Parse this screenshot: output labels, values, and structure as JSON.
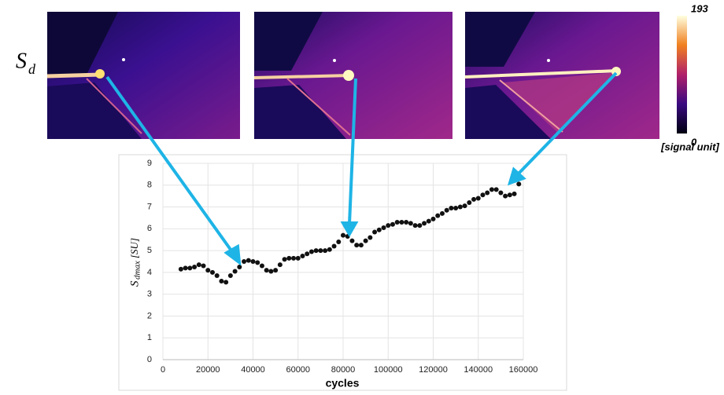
{
  "chart_data": {
    "type": "scatter",
    "panel_label": {
      "main": "S",
      "sub": "d"
    },
    "colorbar": {
      "lim": [
        0,
        193
      ],
      "ticks": [
        0,
        193
      ],
      "label": "[signal unit]"
    },
    "xlabel": "cycles",
    "ylabel": {
      "main": "S",
      "sub": "dmax",
      "unit": "[SU]"
    },
    "color": "#111111",
    "grid": true,
    "xlim": [
      0,
      160000
    ],
    "xticks": [
      0,
      20000,
      40000,
      60000,
      80000,
      100000,
      120000,
      140000,
      160000
    ],
    "ylim": [
      0,
      9
    ],
    "yticks": [
      0,
      1,
      2,
      3,
      4,
      5,
      6,
      7,
      8,
      9
    ],
    "x": [
      8000,
      10000,
      12000,
      14000,
      16000,
      18000,
      20000,
      22000,
      24000,
      26000,
      28000,
      30000,
      32000,
      34000,
      36000,
      38000,
      40000,
      42000,
      44000,
      46000,
      48000,
      50000,
      52000,
      54000,
      56000,
      58000,
      60000,
      62000,
      64000,
      66000,
      68000,
      70000,
      72000,
      74000,
      76000,
      78000,
      80000,
      82000,
      84000,
      86000,
      88000,
      90000,
      92000,
      94000,
      96000,
      98000,
      100000,
      102000,
      104000,
      106000,
      108000,
      110000,
      112000,
      114000,
      116000,
      118000,
      120000,
      122000,
      124000,
      126000,
      128000,
      130000,
      132000,
      134000,
      136000,
      138000,
      140000,
      142000,
      144000,
      146000,
      148000,
      150000,
      152000,
      154000,
      156000,
      158000
    ],
    "values": [
      4.15,
      4.2,
      4.2,
      4.25,
      4.35,
      4.3,
      4.1,
      4.0,
      3.85,
      3.6,
      3.55,
      3.85,
      4.05,
      4.25,
      4.5,
      4.55,
      4.5,
      4.45,
      4.3,
      4.1,
      4.05,
      4.1,
      4.35,
      4.6,
      4.65,
      4.65,
      4.65,
      4.75,
      4.85,
      4.95,
      5.0,
      5.0,
      5.0,
      5.05,
      5.2,
      5.4,
      5.7,
      5.65,
      5.45,
      5.25,
      5.25,
      5.45,
      5.6,
      5.85,
      5.95,
      6.05,
      6.15,
      6.2,
      6.3,
      6.3,
      6.3,
      6.25,
      6.15,
      6.15,
      6.25,
      6.35,
      6.45,
      6.6,
      6.7,
      6.85,
      6.95,
      6.95,
      7.0,
      7.05,
      7.2,
      7.35,
      7.4,
      7.55,
      7.65,
      7.8,
      7.8,
      7.65,
      7.5,
      7.55,
      7.6,
      8.05
    ]
  }
}
